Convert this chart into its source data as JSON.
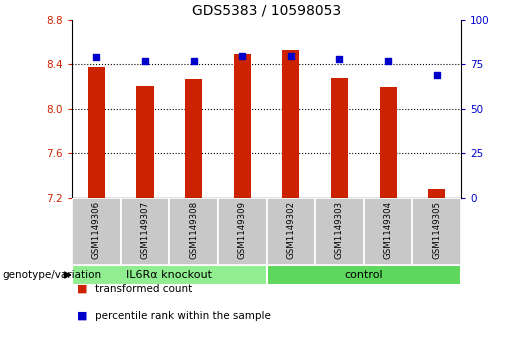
{
  "title": "GDS5383 / 10598053",
  "samples": [
    "GSM1149306",
    "GSM1149307",
    "GSM1149308",
    "GSM1149309",
    "GSM1149302",
    "GSM1149303",
    "GSM1149304",
    "GSM1149305"
  ],
  "red_values": [
    8.38,
    8.21,
    8.27,
    8.49,
    8.53,
    8.28,
    8.2,
    7.28
  ],
  "blue_values": [
    79,
    77,
    77,
    80,
    80,
    78,
    77,
    69
  ],
  "bar_bottom": 7.2,
  "ylim_left": [
    7.2,
    8.8
  ],
  "ylim_right": [
    0,
    100
  ],
  "yticks_left": [
    7.2,
    7.6,
    8.0,
    8.4,
    8.8
  ],
  "yticks_right": [
    0,
    25,
    50,
    75,
    100
  ],
  "groups": [
    {
      "label": "IL6Rα knockout",
      "start": 0,
      "end": 4,
      "color": "#90EE90"
    },
    {
      "label": "control",
      "start": 4,
      "end": 8,
      "color": "#5DD85D"
    }
  ],
  "bar_color": "#CC2200",
  "dot_color": "#0000CC",
  "grid_color": "#000000",
  "label_color_left": "#CC2200",
  "label_color_right": "#0000CC",
  "legend_red_label": "transformed count",
  "legend_blue_label": "percentile rank within the sample",
  "xlabel_left": "genotype/variation",
  "bar_width": 0.35,
  "label_box_color": "#C8C8C8",
  "grid_yticks": [
    7.6,
    8.0,
    8.4
  ]
}
